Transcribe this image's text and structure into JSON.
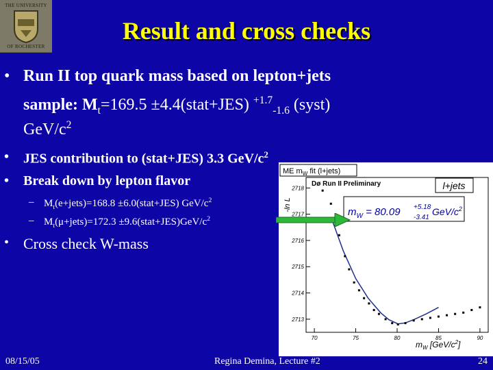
{
  "logo": {
    "line1": "THE UNIVERSITY",
    "line2": "OF ROCHESTER"
  },
  "title": "Result and cross checks",
  "bullet1": {
    "line1": "Run II top quark mass based on lepton+jets",
    "l2_prefix": "sample: M",
    "l2_sub": "t",
    "l2_value": "=169.5 ±4.4(stat+JES) ",
    "l2_sup": "+1.7",
    "l2_sub2": "-1.6",
    "l2_suffix": " (syst)",
    "l3_text": "GeV/c",
    "l3_sup": "2"
  },
  "bullet2": {
    "text": "JES contribution to (stat+JES) 3.3 GeV/c",
    "sup": "2"
  },
  "bullet3": {
    "text": "Break down by lepton flavor"
  },
  "sub1": {
    "prefix": "M",
    "sub": "t",
    "text": "(e+jets)=168.8 ±6.0(stat+JES) GeV/c",
    "sup": "2"
  },
  "sub2": {
    "prefix": "M",
    "sub": "t",
    "text": "(μ+jets)=172.3 ±9.6(stat+JES)GeV/c",
    "sup": "2"
  },
  "bullet4": {
    "text": "Cross check W-mass"
  },
  "footer": {
    "date": "08/15/05",
    "center": "Regina Demina, Lecture #2",
    "page": "24"
  },
  "colors": {
    "background": "#0d05a6",
    "title": "#ffff00",
    "text": "#ffffff",
    "arrow": "#2db83a"
  },
  "chart_data": {
    "type": "scatter",
    "title_box": "ME m",
    "title_box_sub": "W",
    "title_box_rest": " fit (l+jets)",
    "subtitle": "Dø Run II Preliminary",
    "channel": "l+jets",
    "ylabel": "-ln L",
    "xlabel_main": "m",
    "xlabel_sub": "W",
    "xlabel_unit": " [GeV/c",
    "xlabel_sup": "2",
    "xlabel_end": "]",
    "result_lhs": "m",
    "result_lhs_sub": "W",
    "result_eq": " = 80.09",
    "result_up": "+5.18",
    "result_down": "-3.41",
    "result_unit": " GeV/c",
    "result_unit_sup": "2",
    "xlim": [
      69,
      91
    ],
    "ylim": [
      2712.5,
      2718.4
    ],
    "xticks": [
      70,
      75,
      80,
      85,
      90
    ],
    "yticks": [
      2713,
      2714,
      2715,
      2716,
      2717,
      2718
    ],
    "xtick_labels": [
      "70",
      "75",
      "80",
      "85",
      "90"
    ],
    "ytick_labels": [
      "2713",
      "2714",
      "2715",
      "2716",
      "2717",
      "2718"
    ],
    "points": [
      {
        "x": 71.0,
        "y": 2717.9
      },
      {
        "x": 72.0,
        "y": 2717.4
      },
      {
        "x": 73.0,
        "y": 2716.2
      },
      {
        "x": 73.7,
        "y": 2715.4
      },
      {
        "x": 74.2,
        "y": 2714.9
      },
      {
        "x": 74.8,
        "y": 2714.4
      },
      {
        "x": 75.4,
        "y": 2714.1
      },
      {
        "x": 76.0,
        "y": 2713.8
      },
      {
        "x": 76.6,
        "y": 2713.6
      },
      {
        "x": 77.2,
        "y": 2713.35
      },
      {
        "x": 77.8,
        "y": 2713.2
      },
      {
        "x": 78.6,
        "y": 2713.0
      },
      {
        "x": 79.4,
        "y": 2712.85
      },
      {
        "x": 80.1,
        "y": 2712.8
      },
      {
        "x": 81.0,
        "y": 2712.85
      },
      {
        "x": 82.0,
        "y": 2712.95
      },
      {
        "x": 83.0,
        "y": 2713.0
      },
      {
        "x": 84.0,
        "y": 2713.05
      },
      {
        "x": 85.0,
        "y": 2713.1
      },
      {
        "x": 86.0,
        "y": 2713.15
      },
      {
        "x": 87.0,
        "y": 2713.2
      },
      {
        "x": 88.0,
        "y": 2713.25
      },
      {
        "x": 89.0,
        "y": 2713.35
      },
      {
        "x": 90.0,
        "y": 2713.45
      }
    ],
    "fit_curve": [
      {
        "x": 72.0,
        "y": 2716.9
      },
      {
        "x": 73.5,
        "y": 2715.6
      },
      {
        "x": 75.0,
        "y": 2714.55
      },
      {
        "x": 76.5,
        "y": 2713.8
      },
      {
        "x": 78.0,
        "y": 2713.25
      },
      {
        "x": 79.0,
        "y": 2712.98
      },
      {
        "x": 80.1,
        "y": 2712.82
      },
      {
        "x": 81.0,
        "y": 2712.86
      },
      {
        "x": 82.0,
        "y": 2712.98
      },
      {
        "x": 83.5,
        "y": 2713.2
      },
      {
        "x": 85.0,
        "y": 2713.45
      }
    ],
    "line_color": "#1f2f8f",
    "point_color": "#000000",
    "box_colors": {
      "result_text": "#0000a0"
    }
  }
}
